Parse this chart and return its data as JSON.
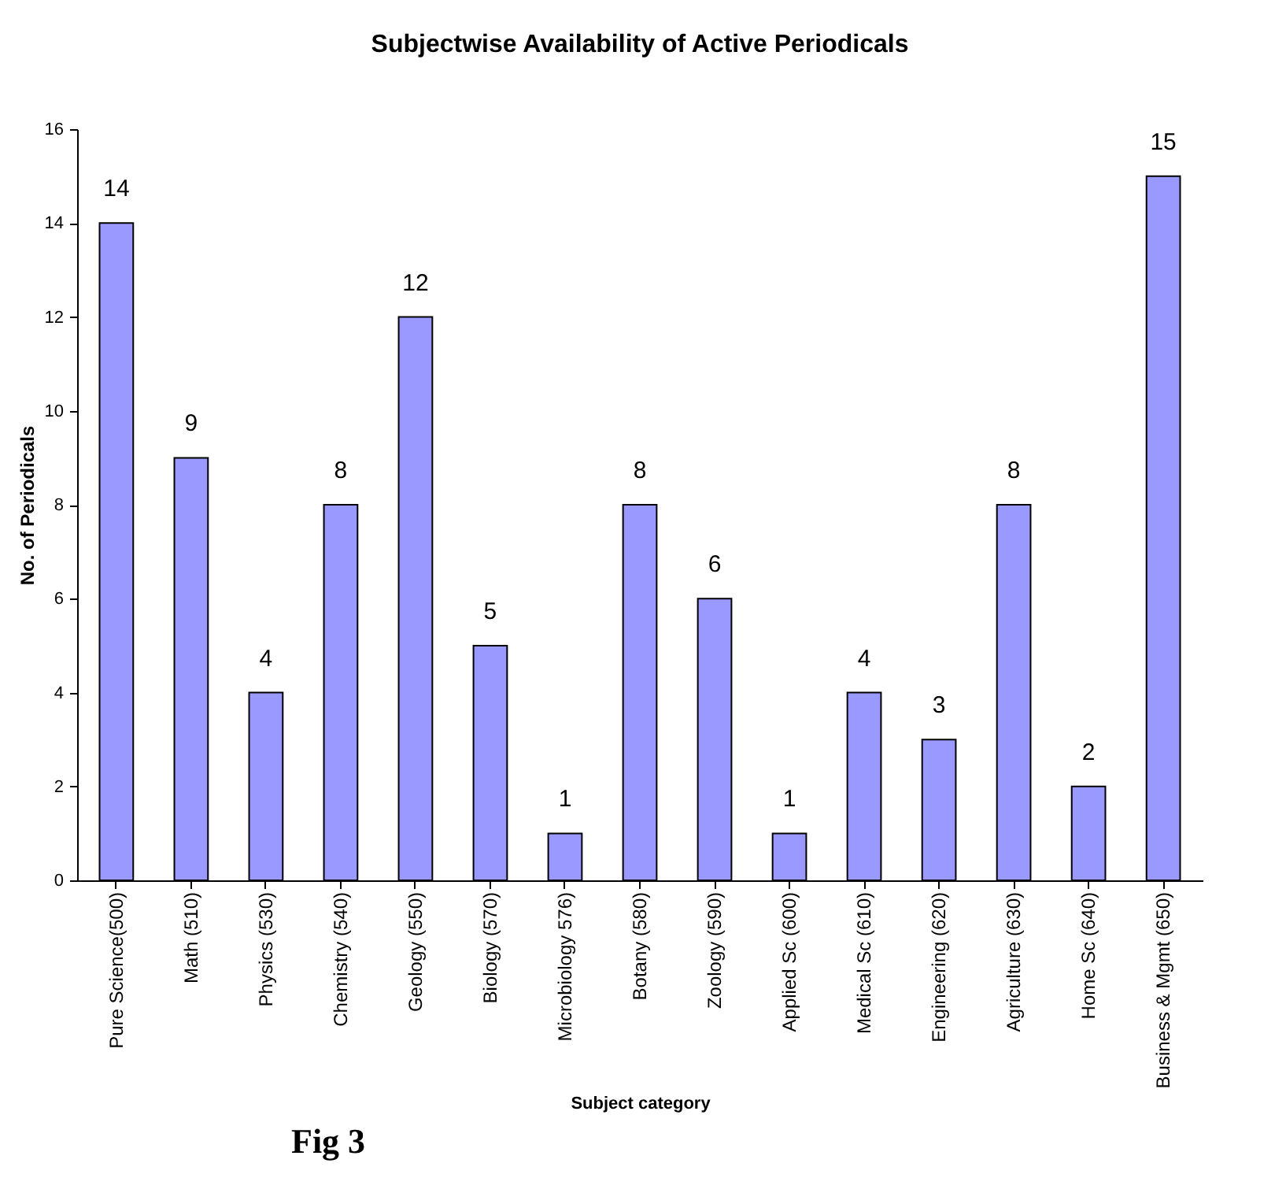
{
  "chart_data": {
    "type": "bar",
    "title": "Subjectwise Availability of Active Periodicals",
    "xlabel": "Subject category",
    "ylabel": "No. of Periodicals",
    "categories": [
      "Pure Science(500)",
      "Math (510)",
      "Physics (530)",
      "Chemistry (540)",
      "Geology (550)",
      "Biology (570)",
      "Microbiology 576)",
      "Botany (580)",
      "Zoology (590)",
      "Applied Sc (600)",
      "Medical Sc (610)",
      "Engineering (620)",
      "Agriculture (630)",
      "Home Sc (640)",
      "Business & Mgmt (650)"
    ],
    "values": [
      14,
      9,
      4,
      8,
      12,
      5,
      1,
      8,
      6,
      1,
      4,
      3,
      8,
      2,
      15
    ],
    "color": "#9999ff",
    "ylim": [
      0,
      16
    ],
    "yticks": [
      0,
      2,
      4,
      6,
      8,
      10,
      12,
      14,
      16
    ],
    "grid": false,
    "data_labels": true,
    "annotations": [
      "Fig 3"
    ]
  }
}
